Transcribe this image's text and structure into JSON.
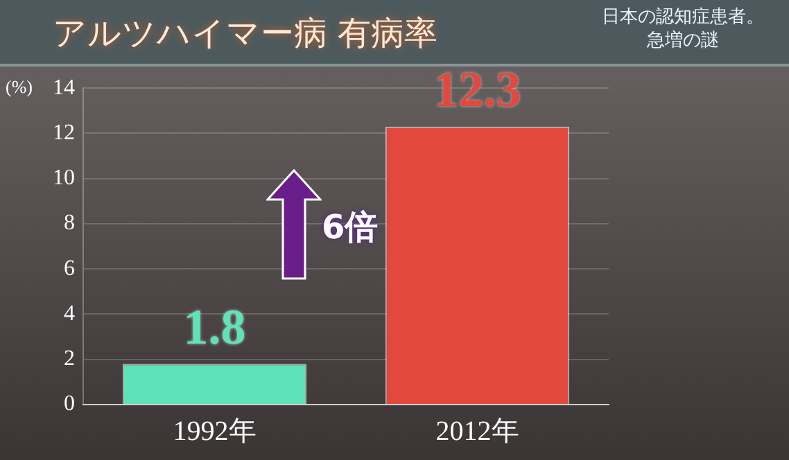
{
  "chart_data": {
    "type": "bar",
    "title": "アルツハイマー病 有病率",
    "subtitle": "日本の認知症患者。急増の謎",
    "ylabel": "(%)",
    "categories": [
      "1992年",
      "2012年"
    ],
    "values": [
      1.8,
      12.3
    ],
    "colors": [
      "#5ee3b8",
      "#e2483b"
    ],
    "ylim": [
      0,
      14
    ],
    "yticks": [
      0,
      2,
      4,
      6,
      8,
      10,
      12,
      14
    ],
    "grid": "y",
    "data_labels": true,
    "legend": false,
    "annotations": [
      "6倍"
    ]
  }
}
